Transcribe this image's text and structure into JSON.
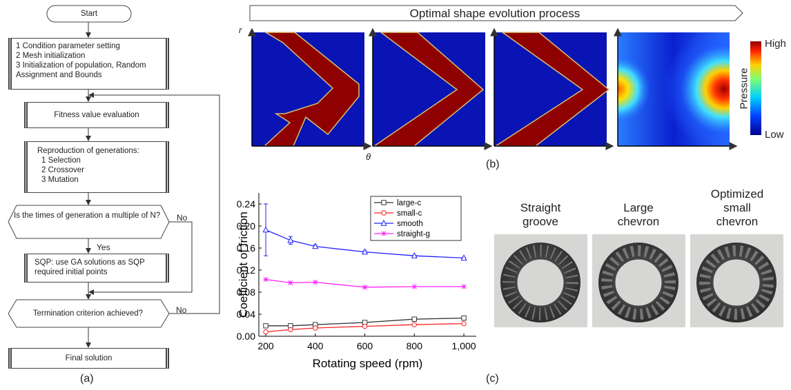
{
  "flowchart": {
    "label": "(a)",
    "nodes": [
      {
        "text": "Start"
      },
      {
        "lines": [
          "1 Condition parameter setting",
          "2 Mesh initialization",
          "3 Initialization of population, Random Assignment and Bounds"
        ]
      },
      {
        "text": "Fitness value evaluation"
      },
      {
        "lines": [
          "Reproduction of generations:",
          "1 Selection",
          "2 Crossover",
          "3 Mutation"
        ]
      },
      {
        "text": "Is the times of generation a multiple of N?"
      },
      {
        "text": "SQP: use GA solutions as SQP required initial points"
      },
      {
        "text": "Termination criterion achieved?"
      },
      {
        "text": "Final solution"
      }
    ],
    "edge_labels": [
      "No",
      "Yes",
      "No"
    ]
  },
  "shape_panel": {
    "title": "Optimal shape evolution process",
    "r_label": "r",
    "theta_label": "θ",
    "colorbar_label": "Pressure",
    "colorbar_high": "High",
    "colorbar_low": "Low",
    "label": "(b)"
  },
  "chart_data": {
    "type": "line",
    "x_label": "Rotating speed (rpm)",
    "y_label": "Coefficient of friction",
    "x": [
      200,
      300,
      400,
      600,
      800,
      1000
    ],
    "series": [
      {
        "name": "large-c",
        "color": "#333333",
        "marker": "square",
        "values": [
          0.019,
          0.019,
          0.021,
          0.025,
          0.031,
          0.033
        ]
      },
      {
        "name": "small-c",
        "color": "#ff2020",
        "marker": "circle",
        "values": [
          0.008,
          0.012,
          0.015,
          0.018,
          0.021,
          0.023
        ]
      },
      {
        "name": "smooth",
        "color": "#2020ff",
        "marker": "triangle",
        "values": [
          0.193,
          0.174,
          0.163,
          0.153,
          0.146,
          0.142
        ],
        "errors": [
          0.047,
          0.007,
          0.003,
          0.002,
          0.001,
          0.001
        ]
      },
      {
        "name": "straight-g",
        "color": "#ff20ff",
        "marker": "star",
        "values": [
          0.103,
          0.097,
          0.098,
          0.089,
          0.09,
          0.09
        ]
      }
    ],
    "xlim": [
      172,
      1050
    ],
    "ylim": [
      0,
      0.26
    ],
    "xticks": [
      200,
      400,
      600,
      800,
      {
        "value": 1000,
        "label": "1,000"
      }
    ],
    "yticks": [
      {
        "value": 0,
        "label": "0.00"
      },
      {
        "value": 0.04,
        "label": "0.04"
      },
      {
        "value": 0.08,
        "label": "0.08"
      },
      {
        "value": 0.12,
        "label": "0.12"
      },
      {
        "value": 0.16,
        "label": "0.16"
      },
      {
        "value": 0.2,
        "label": "0.20"
      },
      {
        "value": 0.24,
        "label": "0.24"
      }
    ],
    "legend": "top-right"
  },
  "photos": {
    "captions": [
      "Straight groove",
      "Large chevron",
      "Optimized small chevron"
    ],
    "label": "(c)"
  }
}
